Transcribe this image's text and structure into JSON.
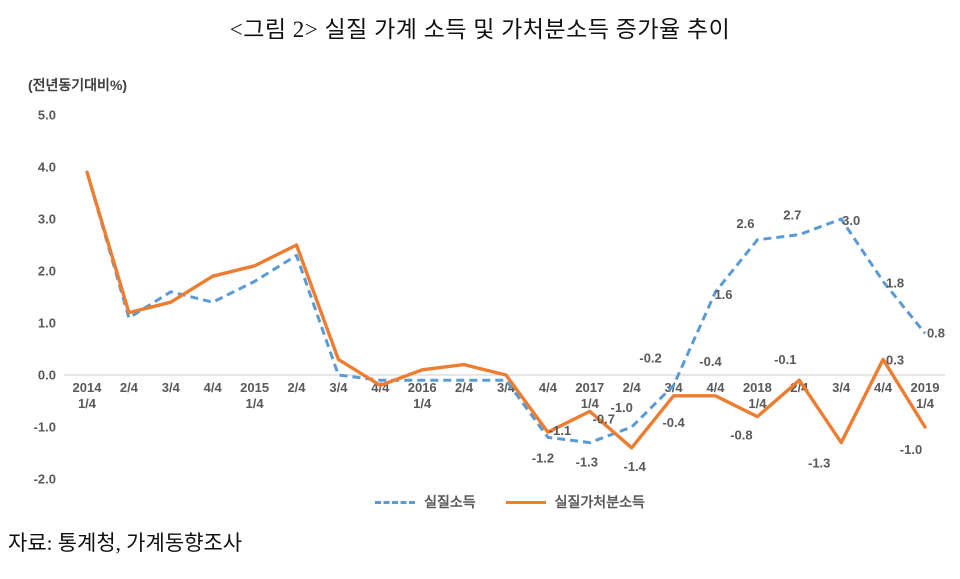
{
  "header": {
    "title": "<그림 2> 실질 가계 소득 및 가처분소득 증가율 추이"
  },
  "source": "자료: 통계청, 가계동향조사",
  "legend": [
    {
      "label": "실질소득",
      "color": "#5B9BD5",
      "line_style": "dashed"
    },
    {
      "label": "실질가처분소득",
      "color": "#ED7D31",
      "line_style": "solid"
    }
  ],
  "chart_data": {
    "type": "line",
    "title": "<그림 2> 실질 가계 소득 및 가처분소득 증가율 추이",
    "ylabel": "(전년동기대비%)",
    "xlabel": "",
    "ylim": [
      -2.0,
      5.0
    ],
    "yticks": [
      5.0,
      4.0,
      3.0,
      2.0,
      1.0,
      0.0,
      -1.0,
      -2.0
    ],
    "grid": "zero-line-only",
    "legend_position": "bottom",
    "categories": [
      "2014 1/4",
      "2/4",
      "3/4",
      "4/4",
      "2015 1/4",
      "2/4",
      "3/4",
      "4/4",
      "2016 1/4",
      "2/4",
      "3/4",
      "4/4",
      "2017 1/4",
      "2/4",
      "3/4",
      "4/4",
      "2018 1/4",
      "2/4",
      "3/4",
      "4/4",
      "2019 1/4"
    ],
    "series": [
      {
        "name": "실질소득",
        "key": "real-income",
        "color": "#5B9BD5",
        "dashed": true,
        "values": [
          3.9,
          1.1,
          1.6,
          1.4,
          1.8,
          2.3,
          0.0,
          -0.1,
          -0.1,
          -0.1,
          -0.1,
          -1.2,
          -1.3,
          -1.0,
          -0.2,
          1.6,
          2.6,
          2.7,
          3.0,
          1.8,
          0.8
        ],
        "labels": [
          {
            "i": 11,
            "text": "-1.2",
            "dx": -5,
            "dy": 25
          },
          {
            "i": 12,
            "text": "-1.3",
            "dx": -3,
            "dy": 24
          },
          {
            "i": 13,
            "text": "-1.0",
            "dx": -10,
            "dy": -15
          },
          {
            "i": 14,
            "text": "-0.2",
            "dx": -23,
            "dy": -23
          },
          {
            "i": 15,
            "text": "1.6",
            "dx": 8,
            "dy": 7
          },
          {
            "i": 16,
            "text": "2.6",
            "dx": -12,
            "dy": -12
          },
          {
            "i": 17,
            "text": "2.7",
            "dx": -7,
            "dy": -15
          },
          {
            "i": 18,
            "text": "3.0",
            "dx": 10,
            "dy": 6
          },
          {
            "i": 19,
            "text": "1.8",
            "dx": 12,
            "dy": 6
          },
          {
            "i": 20,
            "text": "0.8",
            "dx": 11,
            "dy": 4
          }
        ]
      },
      {
        "name": "실질가처분소득",
        "key": "real-disposable-income",
        "color": "#ED7D31",
        "dashed": false,
        "values": [
          3.9,
          1.2,
          1.4,
          1.9,
          2.1,
          2.5,
          0.3,
          -0.2,
          0.1,
          0.2,
          0.0,
          -1.1,
          -0.7,
          -1.4,
          -0.4,
          -0.4,
          -0.8,
          -0.1,
          -1.3,
          0.3,
          -1.0
        ],
        "labels": [
          {
            "i": 11,
            "text": "-1.1",
            "dx": 12,
            "dy": 3
          },
          {
            "i": 12,
            "text": "-0.7",
            "dx": 14,
            "dy": 12
          },
          {
            "i": 13,
            "text": "-1.4",
            "dx": 3,
            "dy": 23
          },
          {
            "i": 14,
            "text": "-0.4",
            "dx": 0,
            "dy": 31
          },
          {
            "i": 15,
            "text": "-0.4",
            "dx": -5,
            "dy": -30
          },
          {
            "i": 16,
            "text": "-0.8",
            "dx": -16,
            "dy": 23
          },
          {
            "i": 17,
            "text": "-0.1",
            "dx": -14,
            "dy": -16
          },
          {
            "i": 18,
            "text": "-1.3",
            "dx": -22,
            "dy": 25
          },
          {
            "i": 19,
            "text": "0.3",
            "dx": 12,
            "dy": 5
          },
          {
            "i": 20,
            "text": "-1.0",
            "dx": -14,
            "dy": 27
          }
        ]
      }
    ]
  }
}
